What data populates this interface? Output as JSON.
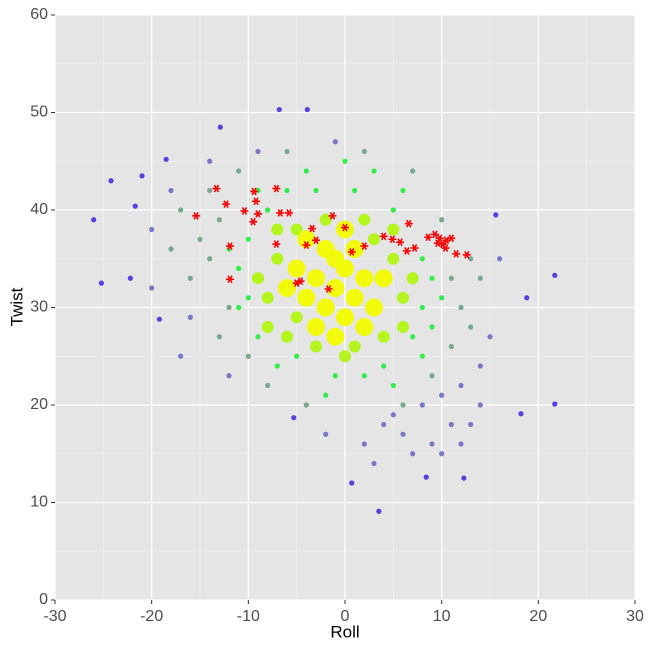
{
  "chart_data": {
    "type": "scatter",
    "x_label": "Roll",
    "y_label": "Twist",
    "xlim": [
      -30,
      30
    ],
    "ylim": [
      0,
      60
    ],
    "xticks": [
      -30,
      -20,
      -10,
      0,
      10,
      20,
      30
    ],
    "yticks": [
      0,
      10,
      20,
      30,
      40,
      50,
      60
    ],
    "grid": true,
    "series": [
      {
        "color": "#5a3ee0",
        "marker": "circle",
        "x": [
          -26,
          -24.2,
          -25.2,
          -22.2,
          -21.7,
          -21,
          -18.5,
          -19.2,
          21.7,
          21.7,
          18.2,
          18.8,
          15.6,
          0.7,
          3.5,
          8.4,
          -6.8,
          -3.9,
          -12.9,
          -5.3,
          12.3
        ],
        "values": [
          39,
          43,
          32.5,
          33,
          40.4,
          43.5,
          45.2,
          28.8,
          33.3,
          20.1,
          19.1,
          31,
          39.5,
          12,
          9.1,
          12.6,
          50.3,
          50.3,
          48.5,
          18.7,
          12.5
        ]
      },
      {
        "color": "#7a78c6",
        "marker": "circle",
        "x": [
          -18,
          -20,
          -16,
          -17,
          8,
          10,
          12,
          14,
          4,
          6,
          9,
          11,
          -2,
          2,
          15,
          14,
          -14,
          -9,
          -1,
          5,
          7,
          10,
          16,
          -20,
          3,
          13,
          -12,
          12
        ],
        "values": [
          42,
          38,
          29,
          25,
          20,
          21,
          22,
          24,
          18,
          17,
          16,
          18,
          17,
          16,
          27,
          20,
          45,
          46,
          47,
          19,
          15,
          15,
          35,
          32,
          14,
          18,
          23,
          16
        ]
      },
      {
        "color": "#78a88e",
        "marker": "circle",
        "x": [
          -13,
          -14,
          -12,
          -15,
          11,
          12,
          13,
          -11,
          -14,
          7,
          10,
          -16,
          -8,
          -10,
          9,
          11,
          -13,
          -6,
          2,
          -17,
          14,
          -4,
          6,
          13,
          -18
        ],
        "values": [
          39,
          35,
          30,
          37,
          33,
          30,
          35,
          44,
          42,
          44,
          39,
          33,
          22,
          25,
          23,
          26,
          27,
          46,
          46,
          40,
          33,
          20,
          20,
          28,
          36
        ]
      },
      {
        "color": "#33ee4a",
        "marker": "circle",
        "x": [
          -10,
          -10,
          8,
          8,
          -11,
          9,
          -8,
          5,
          -3,
          1,
          -6,
          4,
          -1,
          2,
          -5,
          7,
          -9,
          8,
          -12,
          10,
          3,
          -4,
          6,
          -11,
          -7,
          9,
          5,
          -2,
          0,
          -9
        ],
        "values": [
          37,
          31,
          35,
          30,
          34,
          33,
          40,
          40,
          42,
          42,
          42,
          24,
          23,
          23,
          25,
          27,
          27,
          25,
          36,
          31,
          44,
          44,
          42,
          30,
          24,
          28,
          22,
          21,
          45,
          42
        ]
      },
      {
        "color": "#b4f51e",
        "marker": "circle",
        "x": [
          -7,
          -8,
          5,
          6,
          3,
          -5,
          -2,
          2,
          -8,
          -6,
          4,
          -3,
          1,
          6,
          -9,
          7,
          -7,
          5,
          0,
          -5
        ],
        "values": [
          35,
          31,
          35,
          31,
          37,
          38,
          39,
          39,
          28,
          27,
          27,
          26,
          26,
          28,
          33,
          33,
          38,
          38,
          25,
          29
        ]
      },
      {
        "color": "#f2fb0a",
        "marker": "circle",
        "x": [
          -1,
          -2,
          0,
          -3,
          1,
          -1,
          -4,
          2,
          0,
          -2,
          -5,
          3,
          -3,
          1,
          -6,
          4,
          -1,
          2,
          -4,
          0
        ],
        "values": [
          32,
          30,
          34,
          33,
          31,
          35,
          31,
          33,
          29,
          36,
          34,
          30,
          28,
          36,
          32,
          33,
          27,
          28,
          37,
          38
        ]
      },
      {
        "color": "#ff0000",
        "marker": "star",
        "x": [
          -15.4,
          -13.3,
          -12.3,
          -11.9,
          -11.9,
          -10.4,
          -9.4,
          -9.2,
          -9,
          -9.5,
          -7.1,
          -6.7,
          -7.1,
          -5.8,
          -5,
          -4.6,
          -4,
          -3.4,
          -3,
          -1.7,
          -1.3,
          0,
          0.7,
          2,
          4,
          4.9,
          5.7,
          6.4,
          6.6,
          7.2,
          8.6,
          9.3,
          9.8,
          9.6,
          10.1,
          10.5,
          11,
          10.4,
          11.5,
          12.6
        ],
        "values": [
          39.4,
          42.2,
          40.6,
          36.3,
          32.9,
          39.9,
          41.9,
          40.9,
          39.6,
          38.8,
          42.2,
          39.7,
          36.5,
          39.7,
          32.5,
          32.7,
          36.4,
          38.1,
          36.9,
          31.9,
          39.4,
          38.2,
          35.7,
          36.3,
          37.3,
          37,
          36.7,
          35.8,
          38.6,
          36.1,
          37.2,
          37.5,
          37.1,
          36.6,
          36.5,
          36.9,
          37.1,
          36.1,
          35.5,
          35.4
        ]
      }
    ]
  }
}
